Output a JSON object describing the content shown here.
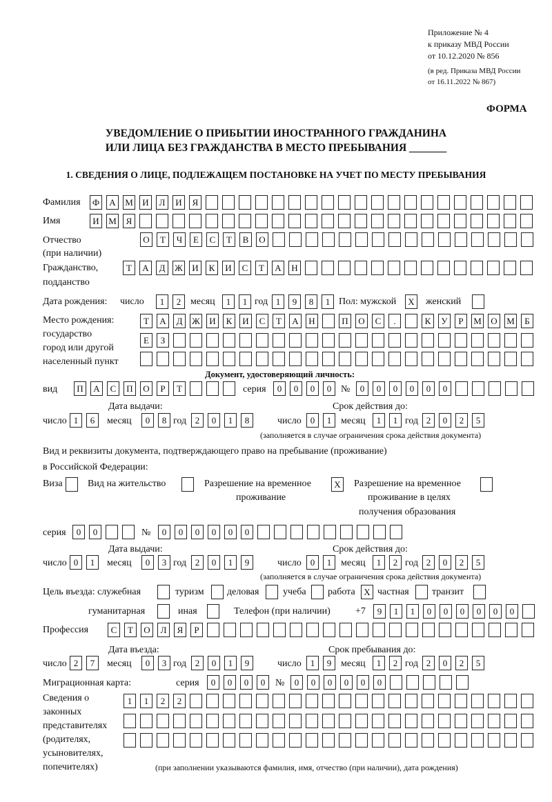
{
  "header": {
    "line1": "Приложение № 4",
    "line2": "к приказу МВД России",
    "line3": "от 10.12.2020 № 856",
    "line4": "(в ред. Приказа МВД России",
    "line5": "от 16.11.2022 № 867)",
    "form": "ФОРМА",
    "title1": "УВЕДОМЛЕНИЕ О ПРИБЫТИИ ИНОСТРАННОГО ГРАЖДАНИНА",
    "title2": "ИЛИ ЛИЦА БЕЗ ГРАЖДАНСТВА В МЕСТО ПРЕБЫВАНИЯ _______",
    "section1": "1. СВЕДЕНИЯ О ЛИЦЕ, ПОДЛЕЖАЩЕМ ПОСТАНОВКЕ НА УЧЕТ ПО МЕСТУ ПРЕБЫВАНИЯ"
  },
  "labels": {
    "surname": "Фамилия",
    "name": "Имя",
    "patronymic1": "Отчество",
    "patronymic2": "(при наличии)",
    "citizenship1": "Гражданство,",
    "citizenship2": "подданство",
    "dob": "Дата рождения:",
    "day": "число",
    "month": "месяц",
    "year": "год",
    "sex": "Пол: мужской",
    "female": "женский",
    "birthplace1": "Место рождения:",
    "birthplace2": "государство",
    "birthplace3": "город или другой",
    "birthplace4": "населенный пункт",
    "id_doc": "Документ, удостоверяющий личность:",
    "kind": "вид",
    "series": "серия",
    "number": "№",
    "issue_date": "Дата выдачи:",
    "valid_until": "Срок действия до:",
    "validity_note": "(заполняется в случае ограничения срока действия документа)",
    "right_doc1": "Вид и реквизиты документа, подтверждающего право на пребывание (проживание)",
    "right_doc2": "в Российской Федерации:",
    "visa": "Виза",
    "residence_permit": "Вид на жительство",
    "temp_residence1": "Разрешение на временное",
    "temp_residence2": "проживание",
    "temp_edu1": "Разрешение на временное",
    "temp_edu2": "проживание в целях",
    "temp_edu3": "получения образования",
    "purpose": "Цель въезда: служебная",
    "tourism": "туризм",
    "business": "деловая",
    "study": "учеба",
    "work": "работа",
    "private": "частная",
    "transit": "транзит",
    "humanitarian": "гуманитарная",
    "other": "иная",
    "phone": "Телефон (при наличии)",
    "phone_prefix": "+7",
    "profession": "Профессия",
    "entry_date": "Дата въезда:",
    "stay_until": "Срок пребывания до:",
    "migration_card": "Миграционная карта:",
    "reps1": "Сведения о",
    "reps2": "законных",
    "reps3": "представителях",
    "reps4": "(родителях,",
    "reps5": "усыновителях,",
    "reps6": "попечителях)",
    "reps_note": "(при заполнении указываются фамилия, имя, отчество (при наличии), дата рождения)"
  },
  "person": {
    "surname": "ФАМИЛИЯ",
    "name": "ИМЯ",
    "patronymic": "ОТЧЕСТВО",
    "citizenship": "ТАДЖИКИСТАН",
    "dob_day": "12",
    "dob_month": "11",
    "dob_year": "1981",
    "male": "X",
    "female": "",
    "birthplace1": "ТАДЖИКИСТАН ПОС. КУРМОМБ",
    "birthplace2": "ЕЗ",
    "birthplace3": ""
  },
  "id_document": {
    "kind": "ПАСПОРТ",
    "series": "0000",
    "number": "000000",
    "issue_day": "16",
    "issue_month": "08",
    "issue_year": "2018",
    "valid_day": "01",
    "valid_month": "11",
    "valid_year": "2025"
  },
  "right_document": {
    "visa": "",
    "residence_permit": "",
    "temp_residence": "X",
    "temp_edu": "",
    "series": "00",
    "number": "000000",
    "issue_day": "01",
    "issue_month": "03",
    "issue_year": "2019",
    "valid_day": "01",
    "valid_month": "12",
    "valid_year": "2025"
  },
  "purpose": {
    "official": "",
    "tourism": "",
    "business": "",
    "study": "",
    "work": "X",
    "private": "",
    "transit": "",
    "humanitarian": "",
    "other": ""
  },
  "phone": "911000000",
  "profession": "СТОЛЯР",
  "entry": {
    "entry_day": "27",
    "entry_month": "03",
    "entry_year": "2019",
    "stay_day": "19",
    "stay_month": "12",
    "stay_year": "2025"
  },
  "migration_card": {
    "series": "0000",
    "number": "000000"
  },
  "representatives": {
    "row1": "1122",
    "row2": "",
    "row3": ""
  }
}
